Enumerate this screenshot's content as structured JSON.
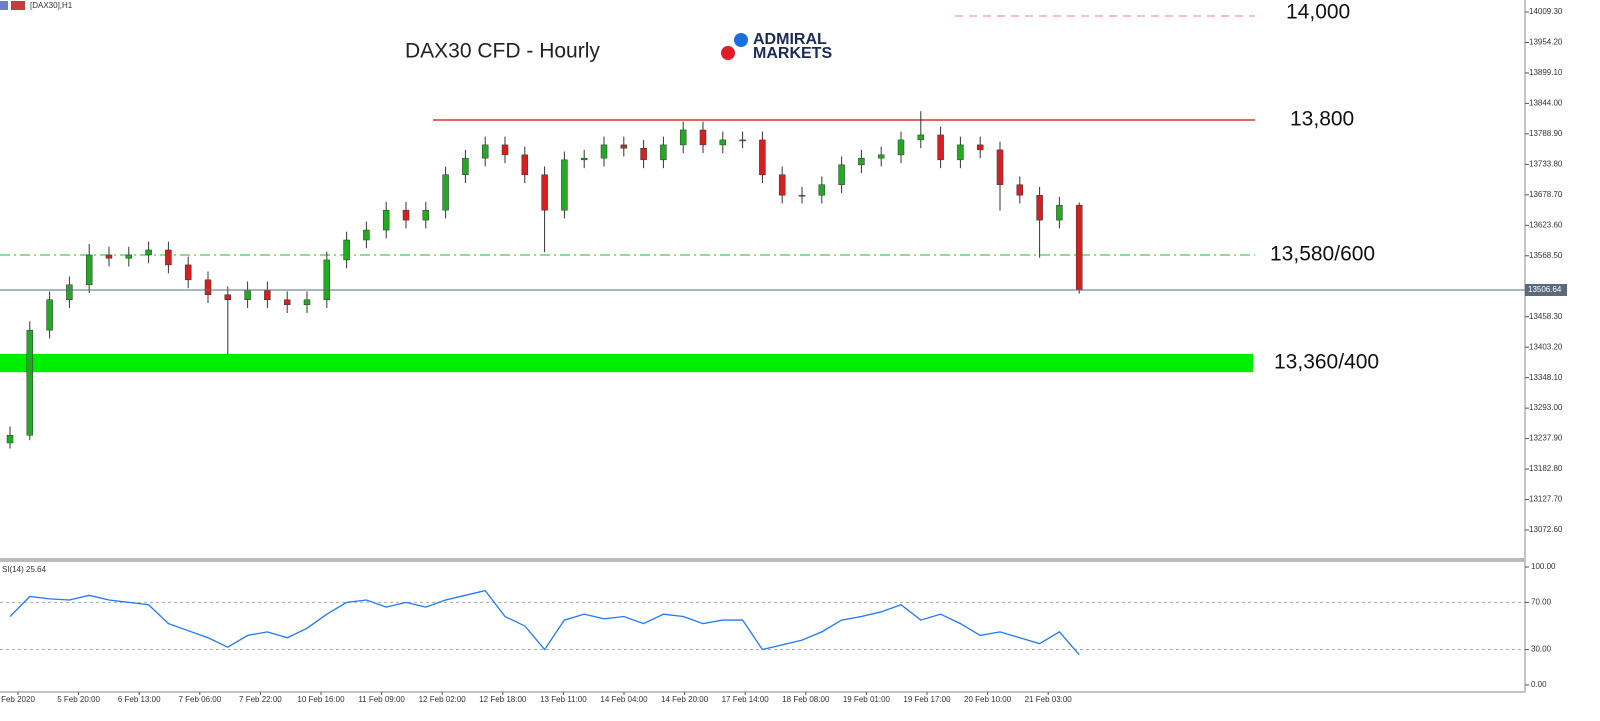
{
  "chart_data": {
    "type": "candlestick",
    "window_label": "[DAX30],H1",
    "title": "DAX30 CFD - Hourly",
    "brand": [
      "ADMIRAL",
      "MARKETS"
    ],
    "x_labels": [
      "Feb 2020",
      "5 Feb 20:00",
      "6 Feb 13:00",
      "7 Feb 06:00",
      "7 Feb 22:00",
      "10 Feb 16:00",
      "11 Feb 09:00",
      "12 Feb 02:00",
      "12 Feb 18:00",
      "13 Feb 11:00",
      "14 Feb 04:00",
      "14 Feb 20:00",
      "17 Feb 14:00",
      "18 Feb 08:00",
      "19 Feb 01:00",
      "19 Feb 17:00",
      "20 Feb 10:00",
      "21 Feb 03:00"
    ],
    "open": [
      13230,
      13244,
      13434,
      13489,
      13516,
      13570,
      13564,
      13570,
      13579,
      13552,
      13525,
      13498,
      13489,
      13507,
      13489,
      13480,
      13489,
      13561,
      13597,
      13615,
      13651,
      13633,
      13651,
      13715,
      13745,
      13769,
      13751,
      13715,
      13651,
      13742,
      13745,
      13769,
      13763,
      13742,
      13769,
      13796,
      13769,
      13778,
      13778,
      13715,
      13678,
      13678,
      13697,
      13733,
      13745,
      13751,
      13778,
      13787,
      13742,
      13769,
      13760,
      13697,
      13678,
      13633,
      13660
    ],
    "high": [
      13260,
      13450,
      13504,
      13531,
      13590,
      13585,
      13585,
      13594,
      13594,
      13567,
      13540,
      13513,
      13522,
      13522,
      13504,
      13504,
      13576,
      13612,
      13630,
      13666,
      13666,
      13666,
      13730,
      13760,
      13784,
      13784,
      13766,
      13730,
      13757,
      13760,
      13784,
      13784,
      13778,
      13784,
      13811,
      13811,
      13793,
      13793,
      13793,
      13730,
      13693,
      13712,
      13748,
      13760,
      13766,
      13793,
      13830,
      13802,
      13784,
      13784,
      13775,
      13712,
      13693,
      13675,
      13665
    ],
    "low": [
      13220,
      13235,
      13419,
      13474,
      13501,
      13549,
      13549,
      13555,
      13537,
      13510,
      13483,
      13390,
      13474,
      13474,
      13465,
      13465,
      13474,
      13546,
      13582,
      13600,
      13618,
      13618,
      13636,
      13700,
      13730,
      13736,
      13700,
      13575,
      13636,
      13727,
      13730,
      13748,
      13727,
      13727,
      13754,
      13754,
      13754,
      13763,
      13700,
      13663,
      13663,
      13663,
      13682,
      13718,
      13730,
      13736,
      13763,
      13727,
      13727,
      13745,
      13650,
      13663,
      13565,
      13618,
      13500
    ],
    "close": [
      13244,
      13434,
      13489,
      13516,
      13570,
      13564,
      13570,
      13579,
      13552,
      13525,
      13498,
      13489,
      13507,
      13489,
      13480,
      13489,
      13561,
      13597,
      13615,
      13651,
      13633,
      13651,
      13715,
      13745,
      13769,
      13751,
      13715,
      13651,
      13742,
      13745,
      13769,
      13763,
      13742,
      13769,
      13796,
      13769,
      13778,
      13778,
      13715,
      13678,
      13678,
      13697,
      13733,
      13745,
      13751,
      13778,
      13787,
      13742,
      13769,
      13760,
      13697,
      13678,
      13633,
      13660,
      13506.64
    ],
    "up_color": "#22aa22",
    "down_color": "#d42020",
    "wick_color": "#333333",
    "ylim": [
      13022,
      14031
    ],
    "yticks": [
      {
        "value": 14009.3,
        "label": "14009.30"
      },
      {
        "value": 13954.2,
        "label": "13954.20"
      },
      {
        "value": 13899.1,
        "label": "13899.10"
      },
      {
        "value": 13844,
        "label": "13844.00"
      },
      {
        "value": 13788.9,
        "label": "13788.90"
      },
      {
        "value": 13733.8,
        "label": "13733.80"
      },
      {
        "value": 13678.7,
        "label": "13678.70"
      },
      {
        "value": 13623.6,
        "label": "13623.60"
      },
      {
        "value": 13568.5,
        "label": "13568.50"
      },
      {
        "value": 13458.3,
        "label": "13458.30"
      },
      {
        "value": 13403.2,
        "label": "13403.20"
      },
      {
        "value": 13348.1,
        "label": "13348.10"
      },
      {
        "value": 13293,
        "label": "13293.00"
      },
      {
        "value": 13237.9,
        "label": "13237.90"
      },
      {
        "value": 13182.8,
        "label": "13182.80"
      },
      {
        "value": 13127.7,
        "label": "13127.70"
      },
      {
        "value": 13072.6,
        "label": "13072.60"
      }
    ],
    "last_price": 13506.64,
    "levels": [
      {
        "text": "14,000",
        "price": 14002,
        "color": "#f08080",
        "style": "dashed"
      },
      {
        "text": "13,800",
        "price": 13814,
        "color": "#e0302a",
        "style": "solid"
      },
      {
        "text": "13,580/600",
        "price": 13570,
        "color": "#22bb22",
        "style": "dashdot"
      }
    ],
    "zone": {
      "text": "13,360/400",
      "range": [
        13358,
        13391
      ],
      "color": "#00ee00"
    },
    "indicator_label": "SI(14) 25.64",
    "rsi": [
      58,
      75,
      73,
      72,
      76,
      72,
      70,
      68,
      52,
      46,
      40,
      32,
      42,
      45,
      40,
      48,
      60,
      70,
      72,
      66,
      70,
      66,
      72,
      76,
      80,
      58,
      50,
      30,
      55,
      60,
      56,
      58,
      52,
      60,
      58,
      52,
      55,
      55,
      30,
      34,
      38,
      45,
      55,
      58,
      62,
      68,
      55,
      60,
      52,
      42,
      45,
      40,
      35,
      45,
      25.64
    ],
    "rsi_color": "#1e78ff",
    "rsi_ylim": [
      -6,
      103.4
    ],
    "rsi_yticks": [
      {
        "value": 100,
        "label": "100.00"
      },
      {
        "value": 70,
        "label": "70.00"
      },
      {
        "value": 30,
        "label": "30.00"
      },
      {
        "value": 0,
        "label": "0.00"
      }
    ],
    "rsi_levels": [
      70,
      30
    ]
  }
}
